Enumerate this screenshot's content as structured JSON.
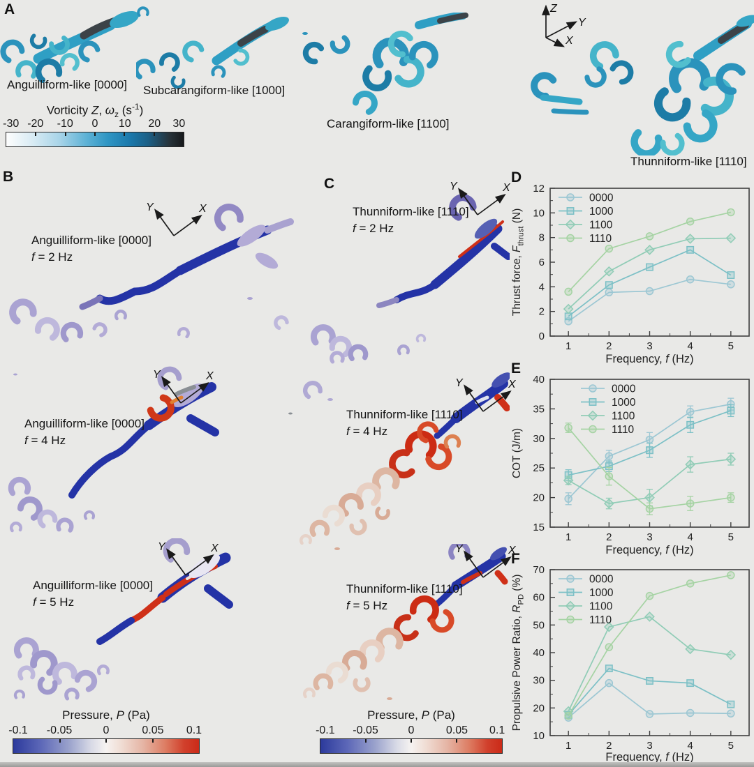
{
  "panels": {
    "axes": {
      "x": "X",
      "y": "Y",
      "z": "Z"
    },
    "a": {
      "letter": "A",
      "modes": [
        {
          "label": "Anguilliform-like [0000]"
        },
        {
          "label": "Subcarangiform-like [1000]"
        },
        {
          "label": "Carangiform-like [1100]"
        },
        {
          "label": "Thunniform-like [1110]"
        }
      ],
      "colorbar": {
        "title_parts": [
          {
            "t": "Vorticity "
          },
          {
            "t": "Z",
            "i": true
          },
          {
            "t": ", "
          },
          {
            "t": "ω",
            "i": true
          },
          {
            "t": "z",
            "sub": true
          },
          {
            "t": " (s"
          },
          {
            "t": "-1",
            "sup": true
          },
          {
            "t": ")"
          }
        ],
        "ticks": [
          "-30",
          "-20",
          "-10",
          "0",
          "10",
          "20",
          "30"
        ]
      }
    },
    "b": {
      "letter": "B",
      "views": [
        {
          "label": "Anguilliform-like [0000]",
          "freq_parts": [
            {
              "t": "f",
              "i": true
            },
            {
              "t": " = 2 Hz"
            }
          ]
        },
        {
          "label": "Anguilliform-like [0000]",
          "freq_parts": [
            {
              "t": "f",
              "i": true
            },
            {
              "t": " = 4 Hz"
            }
          ]
        },
        {
          "label": "Anguilliform-like [0000]",
          "freq_parts": [
            {
              "t": "f",
              "i": true
            },
            {
              "t": " = 5 Hz"
            }
          ]
        }
      ],
      "colorbar": {
        "title_parts": [
          {
            "t": "Pressure, "
          },
          {
            "t": "P",
            "i": true
          },
          {
            "t": " (Pa)"
          }
        ],
        "ticks": [
          "-0.1",
          "-0.05",
          "0",
          "0.05",
          "0.1"
        ]
      }
    },
    "c": {
      "letter": "C",
      "views": [
        {
          "label": "Thunniform-like [1110]",
          "freq_parts": [
            {
              "t": "f",
              "i": true
            },
            {
              "t": " = 2 Hz"
            }
          ]
        },
        {
          "label": "Thunniform-like [1110]",
          "freq_parts": [
            {
              "t": "f",
              "i": true
            },
            {
              "t": " = 4 Hz"
            }
          ]
        },
        {
          "label": "Thunniform-like [1110]",
          "freq_parts": [
            {
              "t": "f",
              "i": true
            },
            {
              "t": " = 5 Hz"
            }
          ]
        }
      ],
      "colorbar": {
        "title_parts": [
          {
            "t": "Pressure, "
          },
          {
            "t": "P",
            "i": true
          },
          {
            "t": " (Pa)"
          }
        ],
        "ticks": [
          "-0.1",
          "-0.05",
          "0",
          "0.05",
          "0.1"
        ]
      }
    }
  },
  "chart_data": [
    {
      "id": "d",
      "letter": "D",
      "type": "line",
      "x": [
        1,
        2,
        3,
        4,
        5
      ],
      "xlim": [
        0.55,
        5.45
      ],
      "ylim": [
        0,
        12
      ],
      "xticks": [
        1,
        2,
        3,
        4,
        5
      ],
      "yticks": [
        0,
        2,
        4,
        6,
        8,
        10,
        12
      ],
      "x_minor": 0.5,
      "y_minor": 1,
      "legend_position": "top-left",
      "grid": false,
      "xlabel_parts": [
        {
          "t": "Frequency, "
        },
        {
          "t": "f",
          "i": true
        },
        {
          "t": " (Hz)"
        }
      ],
      "ylabel_parts": [
        {
          "t": "Thrust force, "
        },
        {
          "t": "F",
          "i": true
        },
        {
          "t": "thrust",
          "sub": true
        },
        {
          "t": " (N)"
        }
      ],
      "series": [
        {
          "name": "0000",
          "marker": "circle",
          "color": "#9cc7d3",
          "values": [
            1.2,
            3.55,
            3.65,
            4.6,
            4.2
          ]
        },
        {
          "name": "1000",
          "marker": "square",
          "color": "#7cc0c6",
          "values": [
            1.6,
            4.15,
            5.6,
            7.0,
            4.95
          ]
        },
        {
          "name": "1100",
          "marker": "diamond",
          "color": "#90ccb6",
          "values": [
            2.2,
            5.25,
            7.0,
            7.9,
            7.95
          ]
        },
        {
          "name": "1110",
          "marker": "circle",
          "color": "#a5d3a3",
          "values": [
            3.6,
            7.1,
            8.1,
            9.3,
            10.05
          ]
        }
      ]
    },
    {
      "id": "e",
      "letter": "E",
      "type": "line",
      "x": [
        1,
        2,
        3,
        4,
        5
      ],
      "xlim": [
        0.55,
        5.45
      ],
      "ylim": [
        15,
        40
      ],
      "xticks": [
        1,
        2,
        3,
        4,
        5
      ],
      "yticks": [
        15,
        20,
        25,
        30,
        35,
        40
      ],
      "x_minor": 0.5,
      "y_minor": 2.5,
      "legend_position": "top-left",
      "grid": false,
      "xlabel_parts": [
        {
          "t": "Frequency, "
        },
        {
          "t": "f",
          "i": true
        },
        {
          "t": " (Hz)"
        }
      ],
      "ylabel_parts": [
        {
          "t": "COT (J/m)"
        }
      ],
      "series": [
        {
          "name": "0000",
          "marker": "circle",
          "color": "#9cc7d3",
          "values": [
            19.8,
            27.0,
            29.8,
            34.5,
            35.8
          ],
          "errors": [
            1.0,
            1.0,
            1.2,
            1.0,
            1.0
          ]
        },
        {
          "name": "1000",
          "marker": "square",
          "color": "#7cc0c6",
          "values": [
            23.8,
            25.3,
            28.0,
            32.3,
            34.7
          ],
          "errors": [
            0.9,
            0.9,
            1.2,
            1.3,
            1.0
          ]
        },
        {
          "name": "1100",
          "marker": "diamond",
          "color": "#90ccb6",
          "values": [
            22.9,
            19.0,
            20.0,
            25.6,
            26.5
          ],
          "errors": [
            0.7,
            0.9,
            1.4,
            1.3,
            1.0
          ]
        },
        {
          "name": "1110",
          "marker": "circle",
          "color": "#a5d3a3",
          "values": [
            31.8,
            23.6,
            18.1,
            19.0,
            20.0
          ],
          "errors": [
            0.8,
            1.5,
            1.0,
            1.2,
            0.8
          ]
        }
      ]
    },
    {
      "id": "f",
      "letter": "F",
      "type": "line",
      "x": [
        1,
        2,
        3,
        4,
        5
      ],
      "xlim": [
        0.55,
        5.45
      ],
      "ylim": [
        10,
        70
      ],
      "xticks": [
        1,
        2,
        3,
        4,
        5
      ],
      "yticks": [
        10,
        20,
        30,
        40,
        50,
        60,
        70
      ],
      "x_minor": 0.5,
      "y_minor": 5,
      "legend_position": "top-left",
      "grid": false,
      "xlabel_parts": [
        {
          "t": "Frequency, "
        },
        {
          "t": "f",
          "i": true
        },
        {
          "t": " (Hz)"
        }
      ],
      "ylabel_parts": [
        {
          "t": "Propulsive Power Ratio, "
        },
        {
          "t": "R",
          "i": true
        },
        {
          "t": "PD",
          "sub": true
        },
        {
          "t": " (%)"
        }
      ],
      "series": [
        {
          "name": "0000",
          "marker": "circle",
          "color": "#9cc7d3",
          "values": [
            16.5,
            29.0,
            17.8,
            18.2,
            18.0
          ]
        },
        {
          "name": "1000",
          "marker": "square",
          "color": "#7cc0c6",
          "values": [
            17.5,
            34.3,
            29.8,
            29.0,
            21.3
          ]
        },
        {
          "name": "1100",
          "marker": "diamond",
          "color": "#90ccb6",
          "values": [
            18.8,
            49.3,
            53.0,
            41.3,
            39.2
          ]
        },
        {
          "name": "1110",
          "marker": "circle",
          "color": "#a5d3a3",
          "values": [
            17.2,
            42.0,
            60.5,
            65.0,
            68.0
          ]
        }
      ]
    }
  ]
}
